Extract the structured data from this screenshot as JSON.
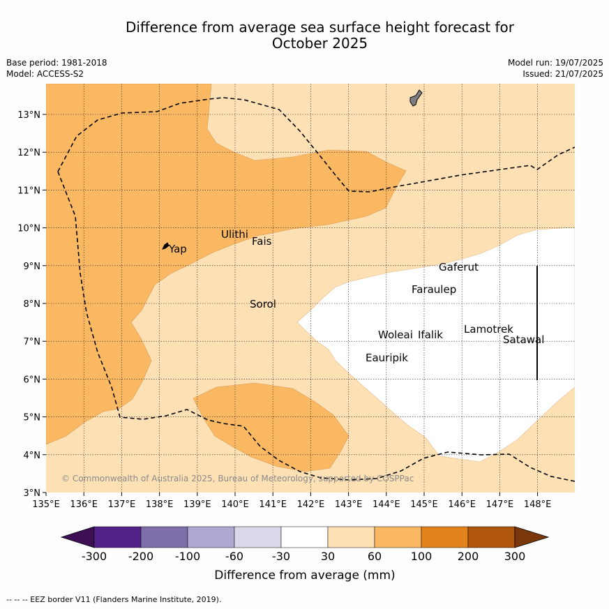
{
  "title_line1": "Difference from average sea surface height forecast for",
  "title_line2": "October 2025",
  "base_period": "Base period: 1981-2018",
  "model": "Model: ACCESS-S2",
  "model_run": "Model run: 19/07/2025",
  "issued": "Issued: 21/07/2025",
  "copyright": "© Commonwealth of Australia 2025, Bureau of Meteorology, supported by COSPPac",
  "footnote": "--  --  -- EEZ border V11 (Flanders Marine Institute, 2019).",
  "map": {
    "lon_ticks": [
      "135°E",
      "136°E",
      "137°E",
      "138°E",
      "139°E",
      "140°E",
      "141°E",
      "142°E",
      "143°E",
      "144°E",
      "145°E",
      "146°E",
      "147°E",
      "148°E"
    ],
    "lat_ticks": [
      "3°N",
      "4°N",
      "5°N",
      "6°N",
      "7°N",
      "8°N",
      "9°N",
      "10°N",
      "11°N",
      "12°N",
      "13°N"
    ],
    "places": [
      "Yap",
      "Ulithi",
      "Fais",
      "Sorol",
      "Gaferut",
      "Faraulep",
      "Woleai",
      "Ifalik",
      "Lamotrek",
      "Satawal",
      "Eauripik"
    ]
  },
  "colorbar": {
    "label": "Difference from average (mm)",
    "ticks": [
      "-300",
      "-200",
      "-100",
      "-60",
      "-30",
      "30",
      "60",
      "100",
      "200",
      "300"
    ],
    "colors": [
      "#3d0f55",
      "#53238a",
      "#7e6fab",
      "#b0a8d2",
      "#d9d9ea",
      "#ffffff",
      "#fde0b4",
      "#fbb862",
      "#e2841b",
      "#b0560c",
      "#7a380a"
    ]
  }
}
